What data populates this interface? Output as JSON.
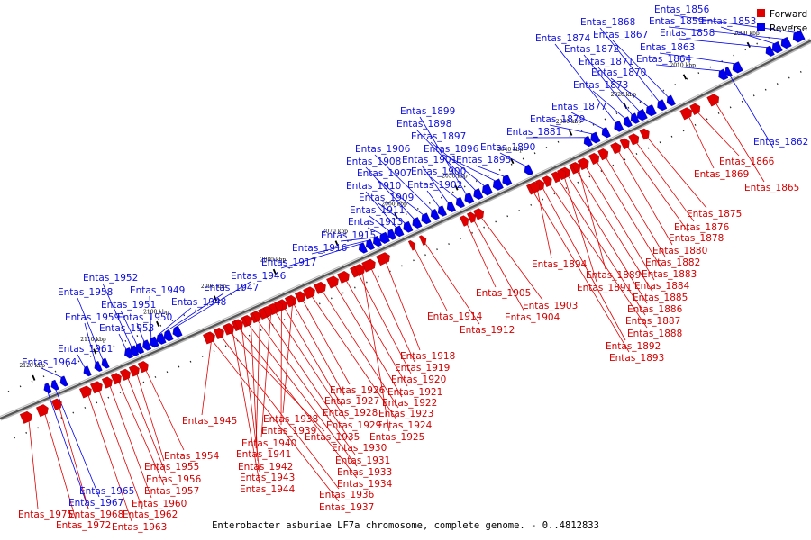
{
  "caption": "Enterobacter asburiae LF7a chromosome, complete genome. - 0..4812833",
  "legend": [
    {
      "label": "Forward",
      "color": "#e00000"
    },
    {
      "label": "Reverse",
      "color": "#0000ee"
    }
  ],
  "ticks": [
    "2000 kbp",
    "2010 kbp",
    "2020 kbp",
    "2030 kbp",
    "2040 kbp",
    "2050 kbp",
    "2060 kbp",
    "2070 kbp",
    "2080 kbp",
    "2090 kbp",
    "2100 kbp",
    "2110 kbp",
    "2120 kbp"
  ],
  "genes": [
    {
      "name": "Entas_1853",
      "strand": "reverse"
    },
    {
      "name": "Entas_1856",
      "strand": "reverse"
    },
    {
      "name": "Entas_1858",
      "strand": "reverse"
    },
    {
      "name": "Entas_1859",
      "strand": "reverse"
    },
    {
      "name": "Entas_1862",
      "strand": "reverse"
    },
    {
      "name": "Entas_1863",
      "strand": "reverse"
    },
    {
      "name": "Entas_1864",
      "strand": "reverse"
    },
    {
      "name": "Entas_1865",
      "strand": "forward"
    },
    {
      "name": "Entas_1866",
      "strand": "forward"
    },
    {
      "name": "Entas_1867",
      "strand": "reverse"
    },
    {
      "name": "Entas_1868",
      "strand": "reverse"
    },
    {
      "name": "Entas_1869",
      "strand": "forward"
    },
    {
      "name": "Entas_1870",
      "strand": "reverse"
    },
    {
      "name": "Entas_1871",
      "strand": "reverse"
    },
    {
      "name": "Entas_1872",
      "strand": "reverse"
    },
    {
      "name": "Entas_1873",
      "strand": "reverse"
    },
    {
      "name": "Entas_1874",
      "strand": "reverse"
    },
    {
      "name": "Entas_1875",
      "strand": "forward"
    },
    {
      "name": "Entas_1876",
      "strand": "forward"
    },
    {
      "name": "Entas_1877",
      "strand": "reverse"
    },
    {
      "name": "Entas_1878",
      "strand": "forward"
    },
    {
      "name": "Entas_1879",
      "strand": "reverse"
    },
    {
      "name": "Entas_1880",
      "strand": "forward"
    },
    {
      "name": "Entas_1881",
      "strand": "reverse"
    },
    {
      "name": "Entas_1882",
      "strand": "forward"
    },
    {
      "name": "Entas_1883",
      "strand": "forward"
    },
    {
      "name": "Entas_1884",
      "strand": "forward"
    },
    {
      "name": "Entas_1885",
      "strand": "forward"
    },
    {
      "name": "Entas_1886",
      "strand": "forward"
    },
    {
      "name": "Entas_1887",
      "strand": "forward"
    },
    {
      "name": "Entas_1888",
      "strand": "forward"
    },
    {
      "name": "Entas_1889",
      "strand": "forward"
    },
    {
      "name": "Entas_1890",
      "strand": "reverse"
    },
    {
      "name": "Entas_1891",
      "strand": "forward"
    },
    {
      "name": "Entas_1892",
      "strand": "forward"
    },
    {
      "name": "Entas_1893",
      "strand": "forward"
    },
    {
      "name": "Entas_1894",
      "strand": "forward"
    },
    {
      "name": "Entas_1895",
      "strand": "reverse"
    },
    {
      "name": "Entas_1896",
      "strand": "reverse"
    },
    {
      "name": "Entas_1897",
      "strand": "reverse"
    },
    {
      "name": "Entas_1898",
      "strand": "reverse"
    },
    {
      "name": "Entas_1899",
      "strand": "reverse"
    },
    {
      "name": "Entas_1900",
      "strand": "reverse"
    },
    {
      "name": "Entas_1901",
      "strand": "reverse"
    },
    {
      "name": "Entas_1902",
      "strand": "reverse"
    },
    {
      "name": "Entas_1903",
      "strand": "forward"
    },
    {
      "name": "Entas_1904",
      "strand": "forward"
    },
    {
      "name": "Entas_1905",
      "strand": "forward"
    },
    {
      "name": "Entas_1906",
      "strand": "reverse"
    },
    {
      "name": "Entas_1907",
      "strand": "reverse"
    },
    {
      "name": "Entas_1908",
      "strand": "reverse"
    },
    {
      "name": "Entas_1909",
      "strand": "reverse"
    },
    {
      "name": "Entas_1910",
      "strand": "reverse"
    },
    {
      "name": "Entas_1911",
      "strand": "reverse"
    },
    {
      "name": "Entas_1912",
      "strand": "forward"
    },
    {
      "name": "Entas_1913",
      "strand": "reverse"
    },
    {
      "name": "Entas_1914",
      "strand": "forward"
    },
    {
      "name": "Entas_1915",
      "strand": "reverse"
    },
    {
      "name": "Entas_1916",
      "strand": "reverse"
    },
    {
      "name": "Entas_1917",
      "strand": "reverse"
    },
    {
      "name": "Entas_1918",
      "strand": "forward"
    },
    {
      "name": "Entas_1919",
      "strand": "forward"
    },
    {
      "name": "Entas_1920",
      "strand": "forward"
    },
    {
      "name": "Entas_1921",
      "strand": "forward"
    },
    {
      "name": "Entas_1922",
      "strand": "forward"
    },
    {
      "name": "Entas_1923",
      "strand": "forward"
    },
    {
      "name": "Entas_1924",
      "strand": "forward"
    },
    {
      "name": "Entas_1925",
      "strand": "forward"
    },
    {
      "name": "Entas_1926",
      "strand": "forward"
    },
    {
      "name": "Entas_1927",
      "strand": "forward"
    },
    {
      "name": "Entas_1928",
      "strand": "forward"
    },
    {
      "name": "Entas_1929",
      "strand": "forward"
    },
    {
      "name": "Entas_1930",
      "strand": "forward"
    },
    {
      "name": "Entas_1931",
      "strand": "forward"
    },
    {
      "name": "Entas_1933",
      "strand": "forward"
    },
    {
      "name": "Entas_1934",
      "strand": "forward"
    },
    {
      "name": "Entas_1935",
      "strand": "forward"
    },
    {
      "name": "Entas_1936",
      "strand": "forward"
    },
    {
      "name": "Entas_1937",
      "strand": "forward"
    },
    {
      "name": "Entas_1938",
      "strand": "forward"
    },
    {
      "name": "Entas_1939",
      "strand": "forward"
    },
    {
      "name": "Entas_1940",
      "strand": "forward"
    },
    {
      "name": "Entas_1941",
      "strand": "forward"
    },
    {
      "name": "Entas_1942",
      "strand": "forward"
    },
    {
      "name": "Entas_1943",
      "strand": "forward"
    },
    {
      "name": "Entas_1944",
      "strand": "forward"
    },
    {
      "name": "Entas_1945",
      "strand": "forward"
    },
    {
      "name": "Entas_1946",
      "strand": "reverse"
    },
    {
      "name": "Entas_1947",
      "strand": "reverse"
    },
    {
      "name": "Entas_1948",
      "strand": "reverse"
    },
    {
      "name": "Entas_1949",
      "strand": "reverse"
    },
    {
      "name": "Entas_1950",
      "strand": "reverse"
    },
    {
      "name": "Entas_1951",
      "strand": "reverse"
    },
    {
      "name": "Entas_1952",
      "strand": "reverse"
    },
    {
      "name": "Entas_1953",
      "strand": "reverse"
    },
    {
      "name": "Entas_1954",
      "strand": "forward"
    },
    {
      "name": "Entas_1955",
      "strand": "forward"
    },
    {
      "name": "Entas_1956",
      "strand": "forward"
    },
    {
      "name": "Entas_1957",
      "strand": "forward"
    },
    {
      "name": "Entas_1958",
      "strand": "reverse"
    },
    {
      "name": "Entas_1959",
      "strand": "reverse"
    },
    {
      "name": "Entas_1960",
      "strand": "forward"
    },
    {
      "name": "Entas_1961",
      "strand": "reverse"
    },
    {
      "name": "Entas_1962",
      "strand": "forward"
    },
    {
      "name": "Entas_1963",
      "strand": "forward"
    },
    {
      "name": "Entas_1964",
      "strand": "reverse"
    },
    {
      "name": "Entas_1965",
      "strand": "reverse"
    },
    {
      "name": "Entas_1967",
      "strand": "reverse"
    },
    {
      "name": "Entas_1968",
      "strand": "forward"
    },
    {
      "name": "Entas_1972",
      "strand": "forward"
    },
    {
      "name": "Entas_1975",
      "strand": "forward"
    }
  ]
}
